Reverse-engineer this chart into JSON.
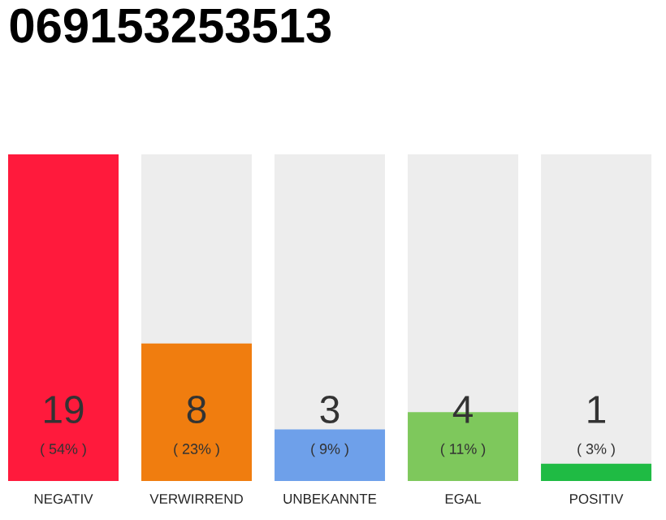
{
  "chart_data": {
    "type": "bar",
    "title": "069153253513",
    "categories": [
      "NEGATIV",
      "VERWIRREND",
      "UNBEKANNTE",
      "EGAL",
      "POSITIV"
    ],
    "values": [
      19,
      8,
      3,
      4,
      1
    ],
    "colors": [
      "#ff1a3c",
      "#f07d0f",
      "#6ea0ea",
      "#7ec85c",
      "#1fbb44"
    ],
    "value_labels": [
      "19",
      "8",
      "3",
      "4",
      "1"
    ],
    "annotations": [
      "( 54% )",
      "( 23% )",
      "( 9% )",
      "( 11% )",
      "( 3% )"
    ]
  }
}
